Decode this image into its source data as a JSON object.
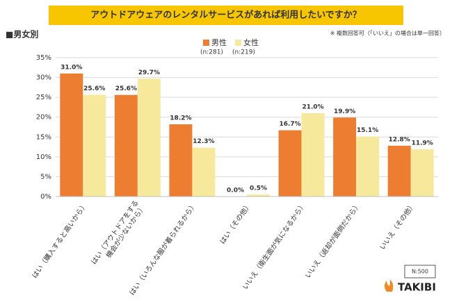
{
  "chart_data": {
    "type": "bar",
    "title": "アウトドアウェアのレンタルサービスがあれば利用したいですか？",
    "subtitle": "■男女別",
    "note": "※ 複数回答可（「いいえ」の場合は単一回答）",
    "categories": [
      "はい（購入すると高いから）",
      "はい（アウトドアをする\n機会が少ないから）",
      "はい（いろんな服が着られるから）",
      "はい（その他）",
      "いいえ（衛生面が気になるから）",
      "いいえ（返却が面倒だから）",
      "いいえ（その他）"
    ],
    "series": [
      {
        "name": "男性",
        "sample": "(n:281)",
        "color": "#ed7d31",
        "values": [
          31.0,
          25.6,
          18.2,
          0.0,
          16.7,
          19.9,
          12.8
        ],
        "value_labels": [
          "31.0%",
          "25.6%",
          "18.2%",
          "0.0%",
          "16.7%",
          "19.9%",
          "12.8%"
        ]
      },
      {
        "name": "女性",
        "sample": "(n:219)",
        "color": "#f7e99c",
        "values": [
          25.6,
          29.7,
          12.3,
          0.5,
          21.0,
          15.1,
          11.9
        ],
        "value_labels": [
          "25.6%",
          "29.7%",
          "12.3%",
          "0.5%",
          "21.0%",
          "15.1%",
          "11.9%"
        ]
      }
    ],
    "ylim": [
      0,
      35
    ],
    "yticks": [
      {
        "value": 0,
        "label": "0%"
      },
      {
        "value": 5,
        "label": "5%"
      },
      {
        "value": 10,
        "label": "10%"
      },
      {
        "value": 15,
        "label": "15%"
      },
      {
        "value": 20,
        "label": "20%"
      },
      {
        "value": 25,
        "label": "25%"
      },
      {
        "value": 30,
        "label": "30%"
      },
      {
        "value": 35,
        "label": "35%"
      }
    ],
    "grid": true,
    "sample_size": "N:500",
    "brand": "TAKIBI"
  }
}
